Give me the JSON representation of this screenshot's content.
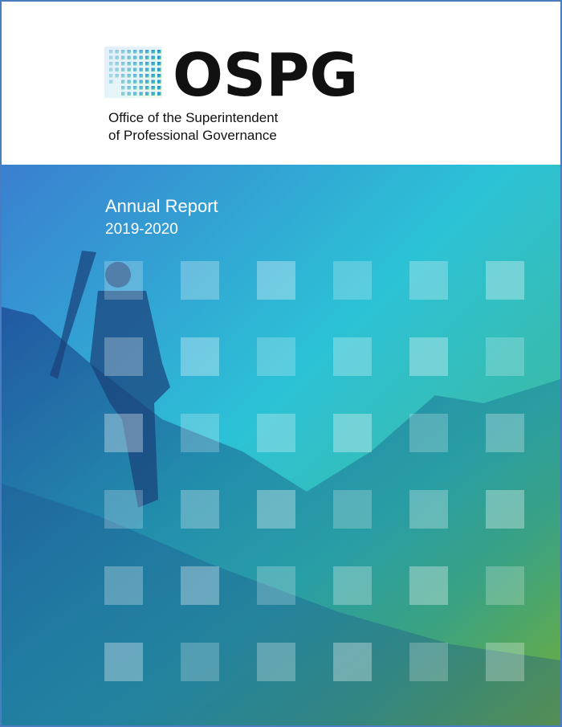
{
  "header": {
    "logo_text": "OSPG",
    "office_lines": [
      "Office of the Superintendent",
      "of Professional Governance"
    ]
  },
  "cover": {
    "title": "Annual Report",
    "year": "2019-2020"
  }
}
